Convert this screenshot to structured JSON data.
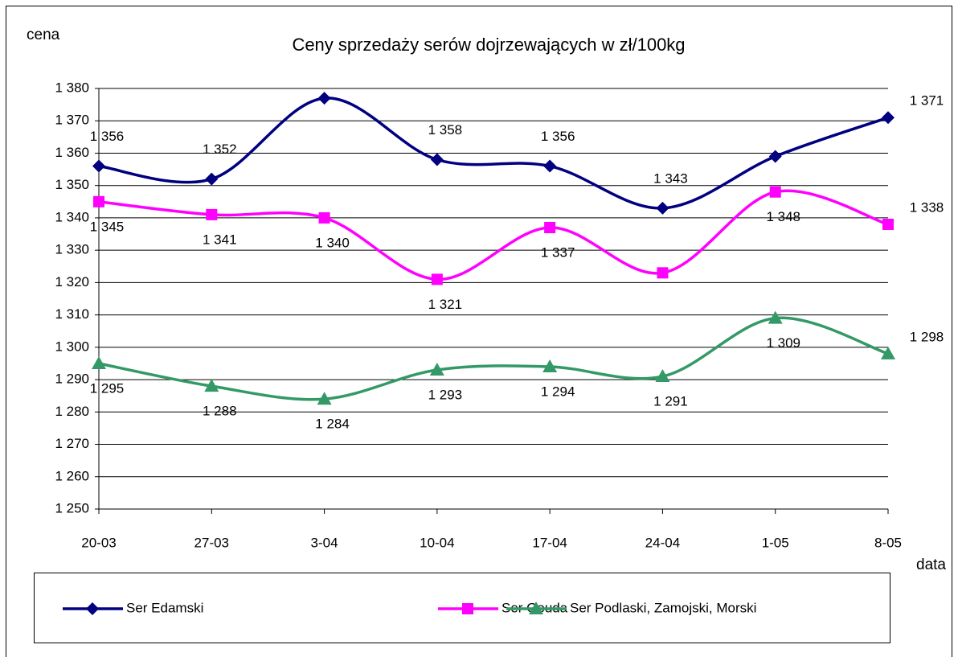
{
  "chart_data": {
    "type": "line",
    "title": "Ceny sprzedaży serów dojrzewających w zł/100kg",
    "y_label": "cena",
    "x_label": "data",
    "categories": [
      "20-03",
      "27-03",
      "3-04",
      "10-04",
      "17-04",
      "24-04",
      "1-05",
      "8-05"
    ],
    "series": [
      {
        "name": "Ser Edamski",
        "color": "#000080",
        "marker": "diamond",
        "values": [
          1356,
          1352,
          1377,
          1358,
          1356,
          1343,
          1359,
          1371
        ],
        "value_labels": [
          "1 356",
          "1 352",
          null,
          "1 358",
          "1 356",
          "1 343",
          null,
          "1 371"
        ]
      },
      {
        "name": "Ser Gouda",
        "color": "#ff00ff",
        "marker": "square",
        "values": [
          1345,
          1341,
          1340,
          1321,
          1337,
          1323,
          1348,
          1338
        ],
        "value_labels": [
          "1 345",
          "1 341",
          "1 340",
          "1 321",
          "1 337",
          null,
          "1 348",
          "1 338"
        ]
      },
      {
        "name": "Ser Podlaski, Zamojski, Morski",
        "color": "#339966",
        "marker": "triangle",
        "values": [
          1295,
          1288,
          1284,
          1293,
          1294,
          1291,
          1309,
          1298
        ],
        "value_labels": [
          "1 295",
          "1 288",
          "1 284",
          "1 293",
          "1 294",
          "1 291",
          "1 309",
          "1 298"
        ]
      }
    ],
    "ylim": [
      1250,
      1380
    ],
    "yticks": [
      {
        "value": 1250,
        "label": "1 250"
      },
      {
        "value": 1260,
        "label": "1 260"
      },
      {
        "value": 1270,
        "label": "1 270"
      },
      {
        "value": 1280,
        "label": "1 280"
      },
      {
        "value": 1290,
        "label": "1 290"
      },
      {
        "value": 1300,
        "label": "1 300"
      },
      {
        "value": 1310,
        "label": "1 310"
      },
      {
        "value": 1320,
        "label": "1 320"
      },
      {
        "value": 1330,
        "label": "1 330"
      },
      {
        "value": 1340,
        "label": "1 340"
      },
      {
        "value": 1350,
        "label": "1 350"
      },
      {
        "value": 1360,
        "label": "1 360"
      },
      {
        "value": 1370,
        "label": "1 370"
      },
      {
        "value": 1380,
        "label": "1 380"
      }
    ],
    "grid": true,
    "smooth": true,
    "legend": "bottom"
  }
}
